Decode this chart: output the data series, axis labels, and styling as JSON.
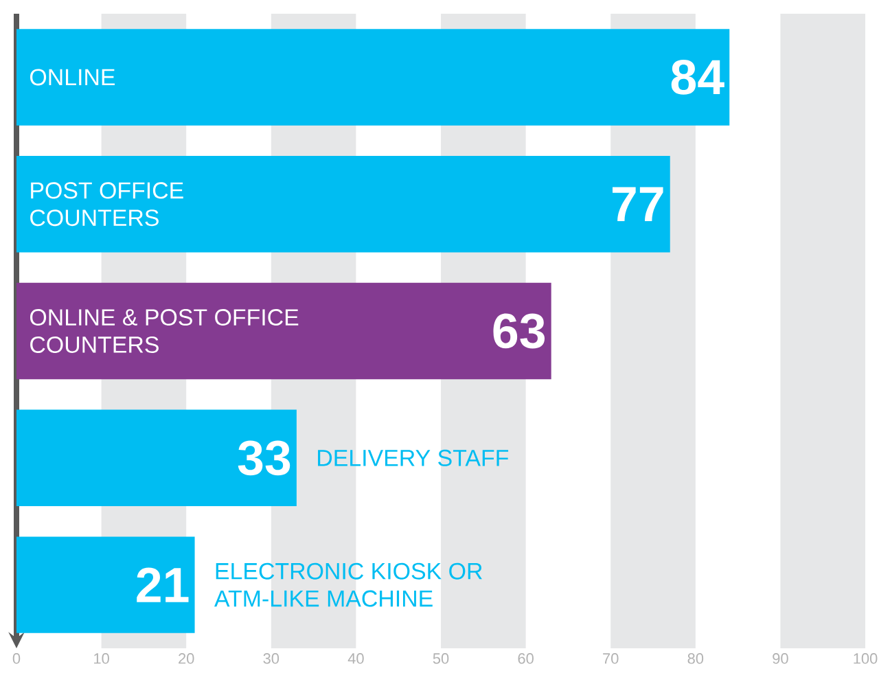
{
  "chart_data": {
    "type": "bar",
    "orientation": "horizontal",
    "categories": [
      "ONLINE",
      "POST OFFICE COUNTERS",
      "ONLINE & POST OFFICE COUNTERS",
      "DELIVERY STAFF",
      "ELECTRONIC KIOSK OR ATM-LIKE MACHINE"
    ],
    "values": [
      84,
      77,
      63,
      33,
      21
    ],
    "colors": [
      "#00bdf2",
      "#00bdf2",
      "#843b91",
      "#00bdf2",
      "#00bdf2"
    ],
    "data_labels": true,
    "xlim": [
      0,
      100
    ],
    "xticks": [
      0,
      10,
      20,
      30,
      40,
      50,
      60,
      70,
      80,
      90,
      100
    ],
    "bands": [
      {
        "axis": "x",
        "from": 10,
        "to": 20,
        "color": "#e6e7e8"
      },
      {
        "axis": "x",
        "from": 30,
        "to": 40,
        "color": "#e6e7e8"
      },
      {
        "axis": "x",
        "from": 50,
        "to": 60,
        "color": "#e6e7e8"
      },
      {
        "axis": "x",
        "from": 70,
        "to": 80,
        "color": "#e6e7e8"
      },
      {
        "axis": "x",
        "from": 90,
        "to": 100,
        "color": "#e6e7e8"
      }
    ]
  }
}
